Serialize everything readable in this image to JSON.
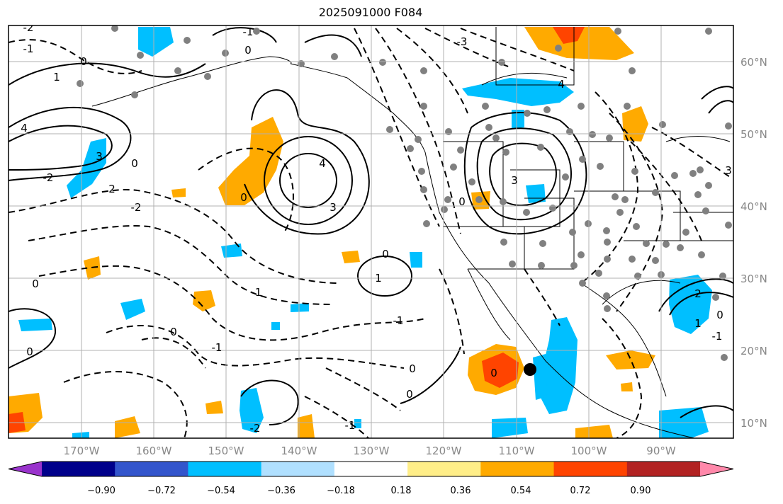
{
  "title": "2025091000 F084",
  "map": {
    "lat_labels": [
      "60°N",
      "50°N",
      "40°N",
      "30°N",
      "20°N",
      "10°N"
    ],
    "lon_labels": [
      "170°W",
      "160°W",
      "150°W",
      "140°W",
      "130°W",
      "120°W",
      "110°W",
      "100°W",
      "90°W"
    ],
    "contour_labels": [
      "-2",
      "-1",
      "0",
      "-1",
      "1",
      "0",
      "4",
      "3",
      "-2",
      "0",
      "2",
      "-2",
      "3",
      "4",
      "3",
      "0",
      "-1",
      "0",
      "1",
      "0",
      "-1",
      "0",
      "0",
      "-1",
      "-2",
      "-1",
      "0",
      "0",
      "0",
      "0",
      "2",
      "1",
      "0",
      "-1",
      "-3",
      "4",
      "3"
    ]
  },
  "colorbar": {
    "ticks": [
      "−0.90",
      "−0.72",
      "−0.54",
      "−0.36",
      "−0.18",
      "0.18",
      "0.36",
      "0.54",
      "0.72",
      "0.90"
    ],
    "colors": [
      "#9933cc",
      "#00008b",
      "#3355cc",
      "#00bfff",
      "#b0e0ff",
      "#ffffff",
      "#ffee88",
      "#ffaa00",
      "#ff4400",
      "#b22222",
      "#ff88aa"
    ]
  }
}
